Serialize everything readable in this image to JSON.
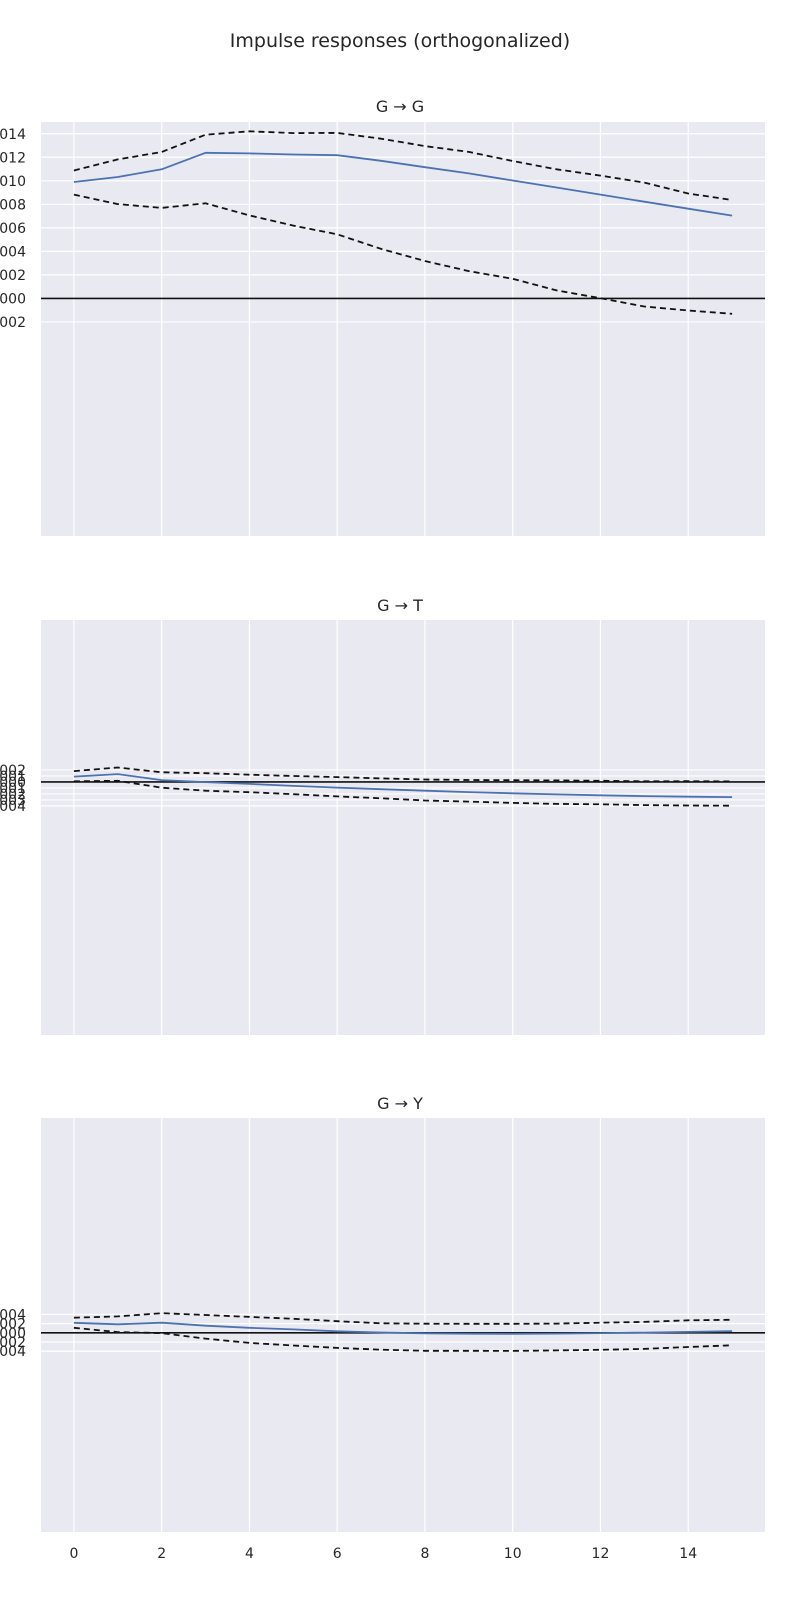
{
  "figure": {
    "title": "Impulse responses (orthogonalized)"
  },
  "chart_data": [
    {
      "type": "line",
      "title": "G → G",
      "x": [
        0,
        1,
        2,
        3,
        4,
        5,
        6,
        7,
        8,
        9,
        10,
        11,
        12,
        13,
        14,
        15
      ],
      "ylim": [
        -0.0202,
        0.015
      ],
      "ytick_values": [
        -0.002,
        0.0,
        0.002,
        0.004,
        0.006,
        0.008,
        0.01,
        0.012,
        0.014
      ],
      "ytick_labels": [
        ".002",
        ".000",
        ".002",
        ".004",
        ".006",
        ".008",
        ".010",
        ".012",
        ".014"
      ],
      "series": [
        {
          "role": "response",
          "style": "solid",
          "color": "#4c72b0",
          "values": [
            0.0099,
            0.01032,
            0.01098,
            0.01238,
            0.01233,
            0.01224,
            0.01218,
            0.0117,
            0.01116,
            0.01063,
            0.01003,
            0.00943,
            0.00883,
            0.00822,
            0.00763,
            0.00704
          ]
        },
        {
          "role": "upper-band",
          "style": "dashed",
          "color": "#111111",
          "values": [
            0.01088,
            0.01182,
            0.01245,
            0.01392,
            0.01421,
            0.01406,
            0.01407,
            0.01358,
            0.01295,
            0.01246,
            0.01168,
            0.01098,
            0.01044,
            0.00985,
            0.00892,
            0.00837
          ]
        },
        {
          "role": "lower-band",
          "style": "dashed",
          "color": "#111111",
          "values": [
            0.00883,
            0.00802,
            0.0077,
            0.00809,
            0.00706,
            0.00619,
            0.00545,
            0.00421,
            0.00318,
            0.00232,
            0.00167,
            0.00068,
            2e-05,
            -0.00069,
            -0.00103,
            -0.00131
          ]
        }
      ]
    },
    {
      "type": "line",
      "title": "G → T",
      "x": [
        0,
        1,
        2,
        3,
        4,
        5,
        6,
        7,
        8,
        9,
        10,
        11,
        12,
        13,
        14,
        15
      ],
      "ylim": [
        -0.0422,
        0.027
      ],
      "ytick_values": [
        -0.004,
        -0.003,
        -0.002,
        -0.001,
        0.0,
        0.001,
        0.002
      ],
      "ytick_labels": [
        ".004",
        ".003",
        ".002",
        ".001",
        ".000",
        ".001",
        ".002"
      ],
      "series": [
        {
          "role": "response",
          "style": "solid",
          "color": "#4c72b0",
          "values": [
            0.00089,
            0.00131,
            0.00031,
            -3e-05,
            -0.00033,
            -0.00066,
            -0.00094,
            -0.00121,
            -0.00147,
            -0.0017,
            -0.0019,
            -0.00208,
            -0.00223,
            -0.00236,
            -0.00246,
            -0.00253
          ]
        },
        {
          "role": "upper-band",
          "style": "dashed",
          "color": "#111111",
          "values": [
            0.0018,
            0.0024,
            0.0016,
            0.00145,
            0.0012,
            0.00098,
            0.0008,
            0.00059,
            0.0004,
            0.00032,
            0.00028,
            0.00025,
            0.00018,
            0.00011,
            0.00012,
            8e-05
          ]
        },
        {
          "role": "lower-band",
          "style": "dashed",
          "color": "#111111",
          "values": [
            0.0001,
            0.00018,
            -0.00097,
            -0.00146,
            -0.00171,
            -0.00205,
            -0.00241,
            -0.00273,
            -0.00309,
            -0.00328,
            -0.00349,
            -0.00366,
            -0.00373,
            -0.00386,
            -0.00393,
            -0.00396
          ]
        }
      ]
    },
    {
      "type": "line",
      "title": "G → Y",
      "x": [
        0,
        1,
        2,
        3,
        4,
        5,
        6,
        7,
        8,
        9,
        10,
        11,
        12,
        13,
        14,
        15
      ],
      "ylim": [
        -0.0433,
        0.0467
      ],
      "ytick_values": [
        -0.004,
        -0.002,
        0.0,
        0.002,
        0.004
      ],
      "ytick_labels": [
        ".004",
        ".002",
        ".000",
        ".002",
        ".004"
      ],
      "series": [
        {
          "role": "response",
          "style": "solid",
          "color": "#4c72b0",
          "values": [
            0.00217,
            0.00186,
            0.00221,
            0.00155,
            0.0011,
            0.00074,
            0.00034,
            7e-05,
            -0.0001,
            -0.0002,
            -0.00021,
            -0.00017,
            -7e-05,
            5e-05,
            0.00021,
            0.00038
          ]
        },
        {
          "role": "upper-band",
          "style": "dashed",
          "color": "#111111",
          "values": [
            0.00329,
            0.00358,
            0.00426,
            0.00387,
            0.00346,
            0.00304,
            0.00252,
            0.00208,
            0.00198,
            0.00195,
            0.00196,
            0.00201,
            0.0022,
            0.00237,
            0.00272,
            0.00282
          ]
        },
        {
          "role": "lower-band",
          "style": "dashed",
          "color": "#111111",
          "values": [
            0.00109,
            0.00016,
            -7e-05,
            -0.00125,
            -0.0022,
            -0.00275,
            -0.00328,
            -0.00366,
            -0.00391,
            -0.0039,
            -0.00394,
            -0.00382,
            -0.00369,
            -0.00349,
            -0.00309,
            -0.00272
          ]
        }
      ]
    }
  ],
  "x_axis": {
    "ticks": [
      "0",
      "2",
      "4",
      "6",
      "8",
      "10",
      "12",
      "14"
    ]
  },
  "colors": {
    "panel_bg": "#e9e9f1",
    "grid": "#ffffff",
    "zero_line": "#111111",
    "response": "#4c72b0",
    "band": "#111111"
  }
}
